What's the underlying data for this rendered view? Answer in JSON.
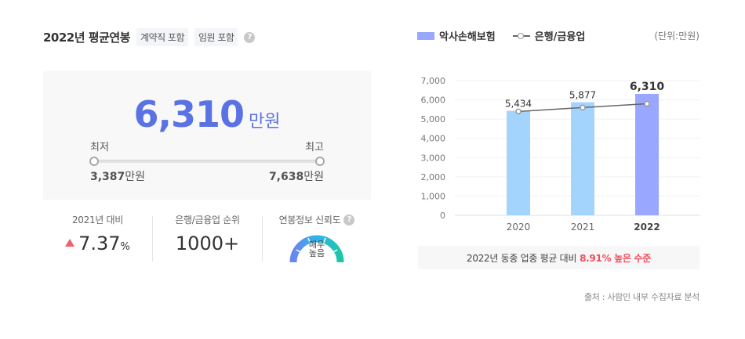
{
  "header": {
    "title": "2022년 평균연봉",
    "tags": [
      "계약직 포함",
      "임원 포함"
    ],
    "help_icon": "question-circle-icon"
  },
  "summary": {
    "value": "6,310",
    "unit": "만원",
    "min_label": "최저",
    "max_label": "최고",
    "min_value": "3,387",
    "max_value": "7,638",
    "min_unit": "만원",
    "max_unit": "만원"
  },
  "stats": {
    "yoy": {
      "caption": "2021년 대비",
      "value": "7.37",
      "suffix": "%",
      "direction": "up"
    },
    "rank": {
      "caption": "은행/금융업 순위",
      "value": "1000+"
    },
    "reliability": {
      "caption": "연봉정보 신뢰도",
      "gauge_line1": "매우",
      "gauge_line2": "높음"
    }
  },
  "legend": {
    "series1": "악사손해보험",
    "series2": "은행/금융업",
    "unit": "(단위:만원)"
  },
  "colors": {
    "accent": "#5a72e4",
    "bar_past": "#a3d4fe",
    "bar_current": "#99a7fe",
    "line": "#666666",
    "highlight": "#f04e5c"
  },
  "chart_data": {
    "type": "bar",
    "categories": [
      "2020",
      "2021",
      "2022"
    ],
    "series": [
      {
        "name": "악사손해보험",
        "type": "bar",
        "values": [
          5434,
          5877,
          6310
        ],
        "labels": [
          "5,434",
          "5,877",
          "6,310"
        ]
      },
      {
        "name": "은행/금융업",
        "type": "line",
        "values": [
          5400,
          5600,
          5800
        ]
      }
    ],
    "yticks": [
      "0",
      "1,000",
      "2,000",
      "3,000",
      "4,000",
      "5,000",
      "6,000",
      "7,000"
    ],
    "ylim": [
      0,
      7000
    ],
    "ylabel": "(단위:만원)",
    "grid": true,
    "legend_position": "top"
  },
  "comparison": {
    "prefix": "2022년 동종 업종 평균 대비",
    "highlight": "8.91% 높은 수준"
  },
  "source": "출처 : 사람인 내부 수집자료 분석"
}
